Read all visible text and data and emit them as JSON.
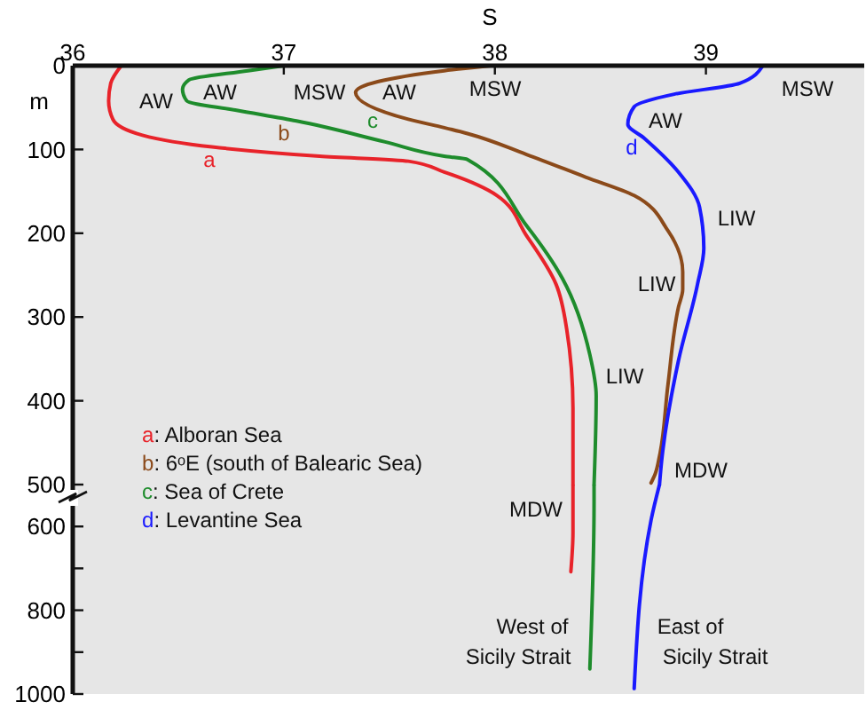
{
  "chart_data": [
    {
      "type": "line",
      "xlabel": "S",
      "ylabel": "m",
      "xlim": [
        36,
        39.75
      ],
      "xticks": [
        36,
        37,
        38,
        39
      ],
      "ylim": [
        500,
        0
      ],
      "yticks": [
        0,
        100,
        200,
        300,
        400,
        500
      ],
      "legend": "left",
      "line_style": "solid",
      "marker": "none",
      "series": [
        {
          "name": "a: Alboran Sea",
          "color": "#e8232a",
          "x": [
            36.23,
            36.18,
            36.17,
            36.19,
            36.33,
            36.66,
            37.17,
            37.59,
            37.76,
            38.01,
            38.15,
            38.29,
            38.34,
            38.37,
            38.37
          ],
          "values": [
            0,
            21,
            42,
            64,
            83,
            97,
            108,
            114,
            127,
            155,
            203,
            261,
            314,
            409,
            500
          ]
        },
        {
          "name": "b: 6ᵒE (south of Balearic Sea)",
          "color": "#8b4a1a",
          "x": [
            37.98,
            37.76,
            37.34,
            37.59,
            37.76,
            37.87,
            38.15,
            38.43,
            38.66,
            38.82,
            38.89,
            38.89,
            38.87,
            38.82,
            38.78,
            38.76,
            38.74
          ],
          "values": [
            0,
            6,
            32,
            64,
            74,
            81,
            106,
            133,
            155,
            197,
            246,
            267,
            288,
            381,
            466,
            487,
            498
          ]
        },
        {
          "name": "c: Sea of Crete",
          "color": "#1e8c2c",
          "x": [
            37.0,
            36.83,
            36.55,
            36.52,
            36.54,
            36.77,
            37.06,
            37.48,
            37.76,
            37.87,
            38.15,
            38.32,
            38.45,
            38.48,
            38.47
          ],
          "values": [
            0,
            6,
            17,
            28,
            42,
            53,
            66,
            91,
            108,
            112,
            191,
            254,
            345,
            394,
            500
          ]
        },
        {
          "name": "d: Levantine Sea",
          "color": "#1a1aff",
          "x": [
            39.27,
            39.16,
            38.85,
            38.66,
            38.63,
            38.71,
            38.87,
            38.97,
            38.99,
            38.96,
            38.87,
            38.79,
            38.78
          ],
          "values": [
            0,
            21,
            34,
            49,
            70,
            87,
            127,
            169,
            218,
            261,
            352,
            472,
            500
          ]
        }
      ],
      "annotations": [
        "AW",
        "AW",
        "MSW",
        "AW",
        "c",
        "b",
        "a",
        "MSW",
        "AW",
        "d",
        "MSW",
        "LIW",
        "LIW",
        "LIW",
        "MDW",
        "MDW",
        "West of",
        "Sicily Strait",
        "East of",
        "Sicily Strait"
      ]
    },
    {
      "type": "line",
      "xlim": [
        36,
        39.75
      ],
      "ylim": [
        1000,
        500
      ],
      "yticks": [
        600,
        {
          "value": 700,
          "label": null
        },
        800,
        {
          "value": 900,
          "label": null
        },
        1000
      ],
      "tick_labels": "y",
      "line_style": "solid",
      "marker": "none",
      "series": [
        {
          "color": "#e8232a",
          "x": [
            38.37,
            38.37,
            38.36
          ],
          "values": [
            500,
            614,
            708
          ]
        },
        {
          "color": "#1e8c2c",
          "x": [
            38.47,
            38.47,
            38.45
          ],
          "values": [
            500,
            542,
            940
          ]
        },
        {
          "color": "#1a1aff",
          "x": [
            38.78,
            38.74,
            38.66
          ],
          "values": [
            500,
            585,
            987
          ]
        }
      ]
    }
  ]
}
